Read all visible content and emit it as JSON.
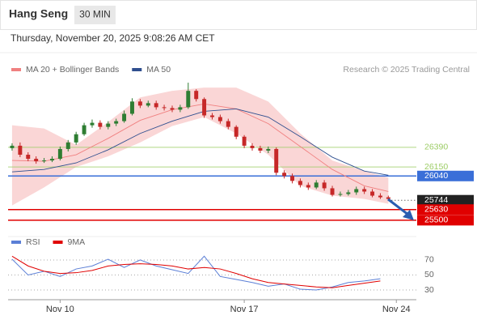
{
  "header": {
    "title": "Hang Seng",
    "interval": "30 MIN",
    "timestamp": "Thursday, November 20, 2025 9:08:26 AM CET"
  },
  "chart_data": [
    {
      "type": "candlestick",
      "legend": [
        {
          "name": "MA 20 + Bollinger Bands",
          "color": "#f08080"
        },
        {
          "name": "MA 50",
          "color": "#2f4f8f"
        }
      ],
      "source": "Research © 2025 Trading Central",
      "up_color": "#2e7d32",
      "down_color": "#c62828",
      "open": [
        26380,
        26410,
        26300,
        26250,
        26220,
        26230,
        26250,
        26370,
        26450,
        26550,
        26660,
        26690,
        26640,
        26680,
        26710,
        26800,
        26950,
        26900,
        26930,
        26880,
        26870,
        26850,
        26880,
        27080,
        26980,
        26780,
        26760,
        26710,
        26640,
        26520,
        26410,
        26380,
        26350,
        26370,
        26080,
        26040,
        25980,
        25930,
        25900,
        25960,
        25890,
        25810,
        25820,
        25840,
        25880,
        25850,
        25800,
        25780
      ],
      "high": [
        26440,
        26450,
        26330,
        26280,
        26260,
        26280,
        26400,
        26480,
        26580,
        26690,
        26730,
        26720,
        26710,
        26740,
        26840,
        26990,
        26980,
        26960,
        26960,
        26910,
        26900,
        26910,
        27180,
        27100,
        27000,
        26810,
        26790,
        26740,
        26660,
        26540,
        26440,
        26410,
        26400,
        26390,
        26110,
        26070,
        26010,
        25960,
        25990,
        25990,
        25920,
        25850,
        25870,
        25910,
        25910,
        25880,
        25830,
        25800
      ],
      "low": [
        26350,
        26270,
        26220,
        26190,
        26200,
        26210,
        26230,
        26340,
        26420,
        26530,
        26630,
        26610,
        26610,
        26650,
        26690,
        26780,
        26870,
        26880,
        26850,
        26840,
        26820,
        26820,
        26860,
        26950,
        26750,
        26730,
        26680,
        26610,
        26490,
        26380,
        26350,
        26320,
        26320,
        26050,
        26010,
        25950,
        25900,
        25870,
        25880,
        25860,
        25790,
        25790,
        25800,
        25810,
        25820,
        25780,
        25760,
        25740
      ],
      "close": [
        26410,
        26300,
        26250,
        26220,
        26230,
        26250,
        26370,
        26450,
        26550,
        26660,
        26690,
        26640,
        26680,
        26710,
        26800,
        26950,
        26900,
        26930,
        26880,
        26870,
        26850,
        26880,
        27080,
        26980,
        26780,
        26760,
        26710,
        26640,
        26520,
        26410,
        26380,
        26350,
        26370,
        26080,
        26040,
        25980,
        25930,
        25900,
        25960,
        25890,
        25810,
        25820,
        25840,
        25880,
        25850,
        25800,
        25780,
        25760
      ],
      "line_x": [
        0,
        4,
        8,
        12,
        16,
        20,
        24,
        28,
        32,
        36,
        40,
        44,
        47
      ],
      "band": {
        "color": "#f8c8c8",
        "upper": [
          26660,
          26620,
          26420,
          26700,
          27000,
          27080,
          27120,
          27120,
          26950,
          26560,
          26230,
          26100,
          26020
        ],
        "lower": [
          25680,
          25900,
          26150,
          26280,
          26450,
          26650,
          26760,
          26560,
          26300,
          25920,
          25800,
          25760,
          25700
        ]
      },
      "series": [
        {
          "name": "MA 20",
          "color": "#f08080",
          "values": [
            26230,
            26220,
            26300,
            26500,
            26720,
            26850,
            26920,
            26860,
            26680,
            26400,
            26120,
            25920,
            25850
          ]
        },
        {
          "name": "MA 50",
          "color": "#2f4f8f",
          "values": [
            26090,
            26120,
            26200,
            26360,
            26560,
            26710,
            26830,
            26860,
            26760,
            26520,
            26270,
            26100,
            26050
          ]
        }
      ],
      "levels": [
        {
          "value": 26390,
          "color": "#9ccc65",
          "boxed": false
        },
        {
          "value": 26150,
          "color": "#9ccc65",
          "boxed": false
        },
        {
          "value": 26040,
          "color": "#3a6fd8",
          "boxed": true
        },
        {
          "value": 25744,
          "color": "#222222",
          "boxed": true,
          "dotted": true
        },
        {
          "value": 25630,
          "color": "#e00000",
          "boxed": true
        },
        {
          "value": 25500,
          "color": "#e00000",
          "boxed": true
        }
      ],
      "xlim": [
        -0.5,
        50.5
      ],
      "ylim": [
        25370,
        27250
      ],
      "xticks": [
        {
          "value": 6,
          "label": "Nov 10"
        },
        {
          "value": 29,
          "label": "Nov 17"
        },
        {
          "value": 48,
          "label": "Nov 24"
        }
      ]
    },
    {
      "type": "line",
      "x": [
        0,
        2,
        4,
        6,
        8,
        10,
        12,
        14,
        16,
        18,
        20,
        22,
        24,
        26,
        28,
        30,
        32,
        34,
        36,
        38,
        40,
        42,
        44,
        46
      ],
      "series": [
        {
          "name": "RSI",
          "color": "#5b7fd6",
          "values": [
            71,
            50,
            55,
            48,
            58,
            62,
            71,
            60,
            70,
            62,
            57,
            52,
            75,
            48,
            44,
            40,
            35,
            38,
            31,
            30,
            34,
            40,
            42,
            45
          ]
        },
        {
          "name": "9MA",
          "color": "#e00000",
          "values": [
            75,
            62,
            55,
            52,
            53,
            56,
            62,
            64,
            65,
            64,
            62,
            58,
            60,
            58,
            52,
            45,
            40,
            38,
            36,
            34,
            33,
            36,
            39,
            42
          ]
        }
      ],
      "xlim": [
        -0.5,
        50.5
      ],
      "ylim": [
        17,
        84
      ],
      "yticks": [
        30,
        50,
        70
      ],
      "grid": true
    }
  ]
}
